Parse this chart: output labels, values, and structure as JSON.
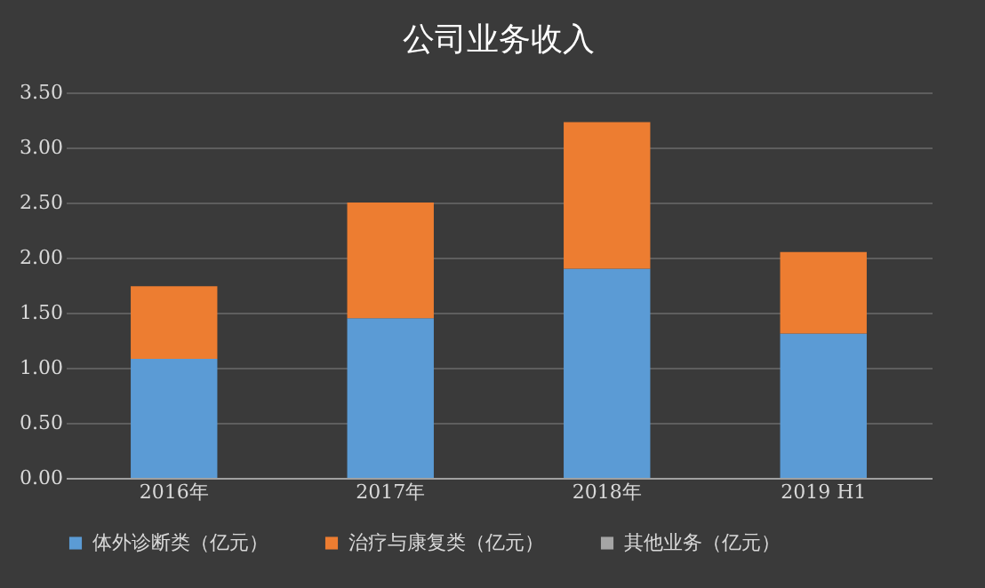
{
  "chart_data": {
    "type": "bar",
    "title": "公司业务收入",
    "stacked": true,
    "categories": [
      "2016年",
      "2017年",
      "2018年",
      "2019 H1"
    ],
    "series": [
      {
        "name": "体外诊断类（亿元）",
        "color": "#5b9bd5",
        "values": [
          1.08,
          1.45,
          1.9,
          1.31
        ]
      },
      {
        "name": "治疗与康复类（亿元）",
        "color": "#ed7d31",
        "values": [
          0.66,
          1.05,
          1.33,
          0.74
        ]
      },
      {
        "name": "其他业务（亿元）",
        "color": "#a5a5a5",
        "values": [
          0,
          0,
          0,
          0
        ]
      }
    ],
    "ylim": [
      0,
      3.5
    ],
    "yticks": [
      {
        "value": 0,
        "label": "0.00"
      },
      {
        "value": 0.5,
        "label": "0.50"
      },
      {
        "value": 1,
        "label": "1.00"
      },
      {
        "value": 1.5,
        "label": "1.50"
      },
      {
        "value": 2,
        "label": "2.00"
      },
      {
        "value": 2.5,
        "label": "2.50"
      },
      {
        "value": 3,
        "label": "3.00"
      },
      {
        "value": 3.5,
        "label": "3.50"
      }
    ],
    "grid": "y",
    "legend": "bottom"
  }
}
